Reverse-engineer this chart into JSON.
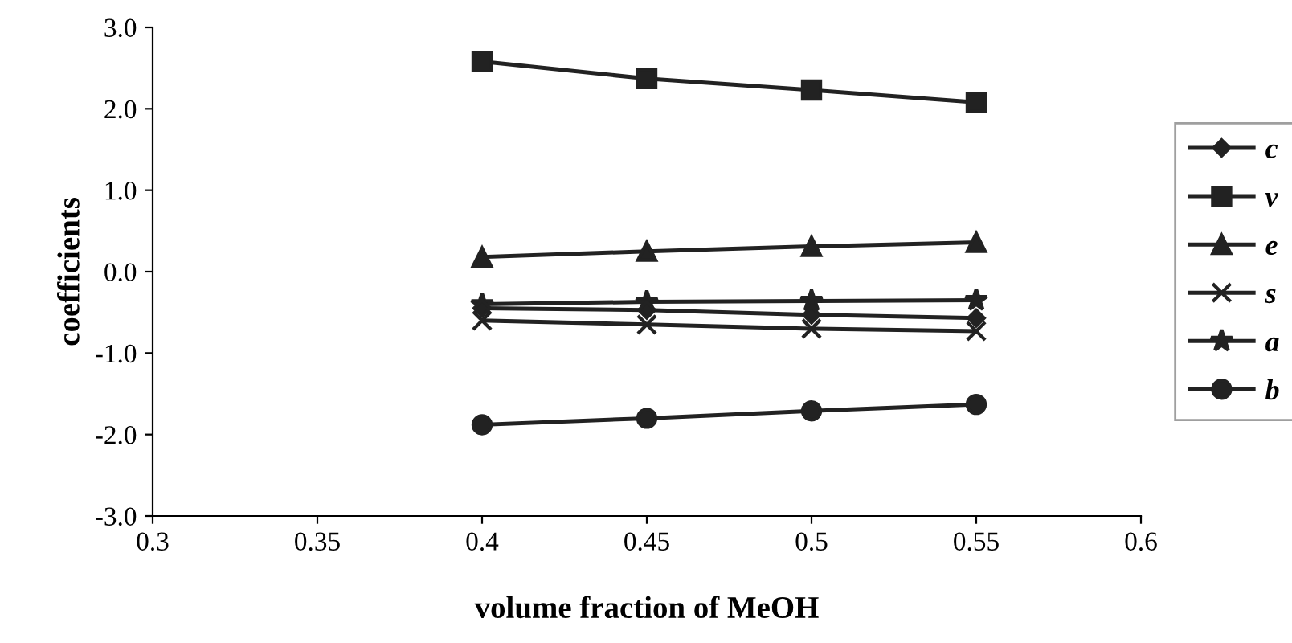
{
  "chart_data": {
    "type": "line",
    "xlabel": "volume fraction of MeOH",
    "ylabel": "coefficients",
    "x": [
      0.4,
      0.45,
      0.5,
      0.55
    ],
    "xlim": [
      0.3,
      0.6
    ],
    "xticks": [
      0.3,
      0.35,
      0.4,
      0.45,
      0.5,
      0.55,
      0.6
    ],
    "ylim": [
      -3.0,
      3.0
    ],
    "yticks": [
      {
        "value": -3,
        "label": "-3.0"
      },
      {
        "value": -2,
        "label": "-2.0"
      },
      {
        "value": -1,
        "label": "-1.0"
      },
      {
        "value": 0,
        "label": "0.0"
      },
      {
        "value": 1,
        "label": "1.0"
      },
      {
        "value": 2,
        "label": "2.0"
      },
      {
        "value": 3,
        "label": "3.0"
      }
    ],
    "grid": false,
    "legend": "right",
    "line_style": "solid",
    "series": [
      {
        "name": "c",
        "color": "#222222",
        "marker": "diamond",
        "values": [
          -0.45,
          -0.47,
          -0.53,
          -0.57
        ]
      },
      {
        "name": "v",
        "color": "#222222",
        "marker": "square",
        "values": [
          2.58,
          2.37,
          2.23,
          2.08
        ]
      },
      {
        "name": "e",
        "color": "#222222",
        "marker": "triangle",
        "values": [
          0.18,
          0.25,
          0.31,
          0.36
        ]
      },
      {
        "name": "s",
        "color": "#222222",
        "marker": "cross",
        "values": [
          -0.6,
          -0.65,
          -0.7,
          -0.73
        ]
      },
      {
        "name": "a",
        "color": "#222222",
        "marker": "star",
        "values": [
          -0.4,
          -0.37,
          -0.36,
          -0.35
        ]
      },
      {
        "name": "b",
        "color": "#222222",
        "marker": "circle",
        "values": [
          -1.88,
          -1.8,
          -1.71,
          -1.63
        ]
      }
    ]
  }
}
